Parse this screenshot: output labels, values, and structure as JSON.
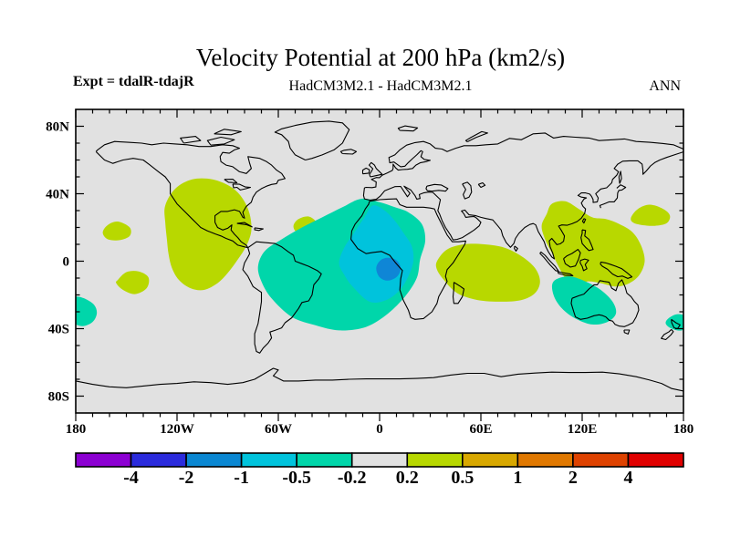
{
  "header": {
    "title": "Velocity Potential at 200 hPa (km2/s)",
    "experiment": "Expt = tdalR-tdajR",
    "model_comparison": "HadCM3M2.1 - HadCM3M2.1",
    "season": "ANN"
  },
  "chart_data": {
    "type": "heatmap",
    "subtype": "filled-contour-world-map",
    "title": "Velocity Potential at 200 hPa (km2/s)",
    "units": "km2/s",
    "projection": "equirectangular",
    "lon_range": [
      -180,
      180
    ],
    "lat_range": [
      -90,
      90
    ],
    "minor_tick_interval_deg": 10,
    "lon_ticks": [
      {
        "label": "180",
        "lon": -180
      },
      {
        "label": "120W",
        "lon": -120
      },
      {
        "label": "60W",
        "lon": -60
      },
      {
        "label": "0",
        "lon": 0
      },
      {
        "label": "60E",
        "lon": 60
      },
      {
        "label": "120E",
        "lon": 120
      },
      {
        "label": "180",
        "lon": 180
      }
    ],
    "lat_ticks": [
      {
        "label": "80N",
        "lat": 80
      },
      {
        "label": "40N",
        "lat": 40
      },
      {
        "label": "0",
        "lat": 0
      },
      {
        "label": "40S",
        "lat": -40
      },
      {
        "label": "80S",
        "lat": -80
      }
    ],
    "map_background": "#e1e1e1",
    "coastline_color": "#000000",
    "colorbar": {
      "tick_labels": [
        "-4",
        "-2",
        "-1",
        "-0.5",
        "-0.2",
        "0.2",
        "0.5",
        "1",
        "2",
        "4"
      ],
      "colors": [
        "#8c00d2",
        "#2b2bdc",
        "#0a87d2",
        "#00c3dc",
        "#00d6aa",
        "#e1e1e1",
        "#b8d800",
        "#d8a800",
        "#e07800",
        "#de4200",
        "#e00000"
      ]
    },
    "regions": [
      {
        "name": "north-america-positive",
        "value_range": "0.2 to 0.5",
        "color": "#b8d800",
        "points": [
          [
            -127,
            33
          ],
          [
            -121,
            43
          ],
          [
            -111,
            48.5
          ],
          [
            -99,
            48.5
          ],
          [
            -88,
            44
          ],
          [
            -81,
            37
          ],
          [
            -77,
            28
          ],
          [
            -76,
            18
          ],
          [
            -79,
            9
          ],
          [
            -84,
            1
          ],
          [
            -90,
            -7
          ],
          [
            -96,
            -13
          ],
          [
            -104,
            -17
          ],
          [
            -112,
            -16
          ],
          [
            -119,
            -11
          ],
          [
            -123,
            -4
          ],
          [
            -125,
            4
          ],
          [
            -126,
            13
          ],
          [
            -127,
            23
          ]
        ]
      },
      {
        "name": "hawaii-positive",
        "value_range": "0.2 to 0.5",
        "color": "#b8d800",
        "points": [
          [
            -164,
            17
          ],
          [
            -161,
            21.5
          ],
          [
            -155,
            23.5
          ],
          [
            -148,
            20
          ],
          [
            -148,
            15
          ],
          [
            -154,
            12.5
          ],
          [
            -161,
            13
          ]
        ]
      },
      {
        "name": "south-pacific-positive",
        "value_range": "0.2 to 0.5",
        "color": "#b8d800",
        "points": [
          [
            -155,
            -11
          ],
          [
            -150,
            -6.5
          ],
          [
            -143,
            -6
          ],
          [
            -137,
            -9.5
          ],
          [
            -138,
            -16
          ],
          [
            -145,
            -19.5
          ],
          [
            -152,
            -17
          ],
          [
            -156,
            -13
          ]
        ]
      },
      {
        "name": "west-atlantic-positive",
        "value_range": "0.2 to 0.5",
        "color": "#b8d800",
        "points": [
          [
            -51,
            21
          ],
          [
            -48,
            25
          ],
          [
            -42,
            26.5
          ],
          [
            -37.5,
            23
          ],
          [
            -38,
            18
          ],
          [
            -43,
            15.5
          ],
          [
            -49,
            17
          ]
        ]
      },
      {
        "name": "atlantic-negative-outer",
        "value_range": "-0.5 to -0.2",
        "color": "#00d6aa",
        "points": [
          [
            -72,
            -3
          ],
          [
            -68,
            6
          ],
          [
            -58,
            13
          ],
          [
            -46,
            20
          ],
          [
            -34,
            26
          ],
          [
            -22,
            32
          ],
          [
            -11,
            37
          ],
          [
            0,
            35
          ],
          [
            9,
            32
          ],
          [
            17,
            29
          ],
          [
            25,
            22
          ],
          [
            27,
            12
          ],
          [
            24,
            1
          ],
          [
            22,
            -10
          ],
          [
            15,
            -21
          ],
          [
            5,
            -31
          ],
          [
            -8,
            -39
          ],
          [
            -24,
            -41
          ],
          [
            -38,
            -38
          ],
          [
            -52,
            -33
          ],
          [
            -64,
            -22
          ],
          [
            -70,
            -12
          ]
        ]
      },
      {
        "name": "atlantic-negative-mid",
        "value_range": "-1 to -0.5",
        "color": "#00c3dc",
        "points": [
          [
            -24,
            -1
          ],
          [
            -21,
            8
          ],
          [
            -15,
            17
          ],
          [
            -9,
            26
          ],
          [
            -4,
            33
          ],
          [
            3,
            30
          ],
          [
            9,
            24
          ],
          [
            14,
            17
          ],
          [
            19,
            9
          ],
          [
            20,
            0
          ],
          [
            17,
            -9
          ],
          [
            12,
            -17
          ],
          [
            4,
            -23
          ],
          [
            -6,
            -24
          ],
          [
            -16,
            -15
          ],
          [
            -21,
            -8
          ]
        ]
      },
      {
        "name": "atlantic-negative-core",
        "value_range": "-2 to -1",
        "color": "#0f86d6",
        "points": [
          [
            -2,
            -4
          ],
          [
            0.5,
            0.5
          ],
          [
            5,
            2
          ],
          [
            10,
            0.5
          ],
          [
            12.5,
            -4
          ],
          [
            10.5,
            -9
          ],
          [
            5,
            -11.5
          ],
          [
            0,
            -9.5
          ]
        ]
      },
      {
        "name": "indian-ocean-positive",
        "value_range": "0.2 to 0.5",
        "color": "#b8d800",
        "points": [
          [
            34,
            0
          ],
          [
            40,
            7
          ],
          [
            50,
            10
          ],
          [
            62,
            10
          ],
          [
            74,
            8
          ],
          [
            84,
            3
          ],
          [
            92,
            -4
          ],
          [
            95,
            -12
          ],
          [
            92,
            -19
          ],
          [
            84,
            -23
          ],
          [
            72,
            -24
          ],
          [
            58,
            -23
          ],
          [
            46,
            -19
          ],
          [
            38,
            -11
          ],
          [
            34,
            -5
          ]
        ]
      },
      {
        "name": "east-asia-positive",
        "value_range": "0.2 to 0.5",
        "color": "#b8d800",
        "points": [
          [
            99,
            28
          ],
          [
            102,
            34
          ],
          [
            110,
            35.5
          ],
          [
            118,
            31
          ],
          [
            126,
            26
          ],
          [
            134,
            25
          ],
          [
            142,
            22
          ],
          [
            150,
            17
          ],
          [
            155,
            9
          ],
          [
            157,
            0
          ],
          [
            154,
            -8
          ],
          [
            148,
            -13
          ],
          [
            140,
            -15
          ],
          [
            131,
            -13
          ],
          [
            123,
            -12
          ],
          [
            116,
            -14
          ],
          [
            110,
            -10
          ],
          [
            106,
            -3
          ],
          [
            102,
            5
          ],
          [
            98,
            13
          ],
          [
            96,
            21
          ]
        ]
      },
      {
        "name": "northwest-pacific-positive",
        "value_range": "0.2 to 0.5",
        "color": "#b8d800",
        "points": [
          [
            149,
            26
          ],
          [
            153,
            31
          ],
          [
            160,
            33.5
          ],
          [
            168,
            31
          ],
          [
            172,
            27
          ],
          [
            170,
            22.5
          ],
          [
            163,
            21
          ],
          [
            155,
            21.5
          ],
          [
            150,
            23
          ]
        ]
      },
      {
        "name": "australia-negative",
        "value_range": "-0.5 to -0.2",
        "color": "#00d6aa",
        "points": [
          [
            103,
            -12
          ],
          [
            112,
            -9
          ],
          [
            122,
            -12
          ],
          [
            131,
            -17
          ],
          [
            138,
            -24
          ],
          [
            140,
            -31
          ],
          [
            135,
            -36
          ],
          [
            126,
            -37.5
          ],
          [
            116,
            -34
          ],
          [
            108,
            -28
          ],
          [
            103,
            -20
          ]
        ]
      },
      {
        "name": "dateline-negative-west",
        "value_range": "-0.5 to -0.2",
        "color": "#00d6aa",
        "points": [
          [
            -180,
            -21
          ],
          [
            -174,
            -22.5
          ],
          [
            -169,
            -26
          ],
          [
            -167.5,
            -31
          ],
          [
            -170,
            -36
          ],
          [
            -176,
            -38.5
          ],
          [
            -182,
            -36
          ],
          [
            -184,
            -29
          ],
          [
            -183,
            -24
          ]
        ]
      },
      {
        "name": "dateline-negative-east",
        "value_range": "-0.5 to -0.2",
        "color": "#00d6aa",
        "points": [
          [
            171,
            -34
          ],
          [
            176,
            -31.5
          ],
          [
            181,
            -32.5
          ],
          [
            183.5,
            -37
          ],
          [
            179,
            -41
          ],
          [
            173,
            -40
          ],
          [
            169.5,
            -37
          ]
        ]
      }
    ]
  }
}
